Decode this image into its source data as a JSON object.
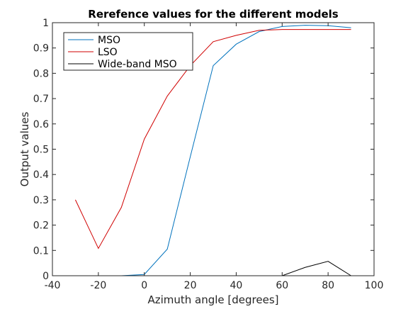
{
  "chart_data": {
    "type": "line",
    "title": "Rerefence values for the different models",
    "xlabel": "Azimuth angle [degrees]",
    "ylabel": "Output values",
    "xlim": [
      -40,
      100
    ],
    "ylim": [
      0,
      1
    ],
    "xticks": [
      -40,
      -20,
      0,
      20,
      40,
      60,
      80,
      100
    ],
    "xtick_labels": [
      "-40",
      "-20",
      "0",
      "20",
      "40",
      "60",
      "80",
      "100"
    ],
    "yticks": [
      0,
      0.1,
      0.2,
      0.3,
      0.4,
      0.5,
      0.6,
      0.7,
      0.8,
      0.9,
      1
    ],
    "ytick_labels": [
      "0",
      "0.1",
      "0.2",
      "0.3",
      "0.4",
      "0.5",
      "0.6",
      "0.7",
      "0.8",
      "0.9",
      "1"
    ],
    "grid": false,
    "legend_position": "top-left",
    "x": [
      -30,
      -20,
      -10,
      0,
      10,
      20,
      30,
      40,
      50,
      60,
      70,
      80,
      90
    ],
    "series": [
      {
        "name": "MSO",
        "color": "#0072bd",
        "values": [
          0,
          0,
          0,
          0.005,
          0.105,
          0.47,
          0.83,
          0.915,
          0.965,
          0.985,
          0.99,
          0.988,
          0.98
        ]
      },
      {
        "name": "LSO",
        "color": "#d00000",
        "values": [
          0.3,
          0.108,
          0.27,
          0.54,
          0.71,
          0.83,
          0.925,
          0.95,
          0.97,
          0.973,
          0.973,
          0.973,
          0.973
        ]
      },
      {
        "name": "Wide-band MSO",
        "color": "#000000",
        "values": [
          0,
          0,
          0,
          0,
          0,
          0,
          0,
          0,
          0,
          0,
          0.033,
          0.057,
          0
        ]
      }
    ]
  }
}
